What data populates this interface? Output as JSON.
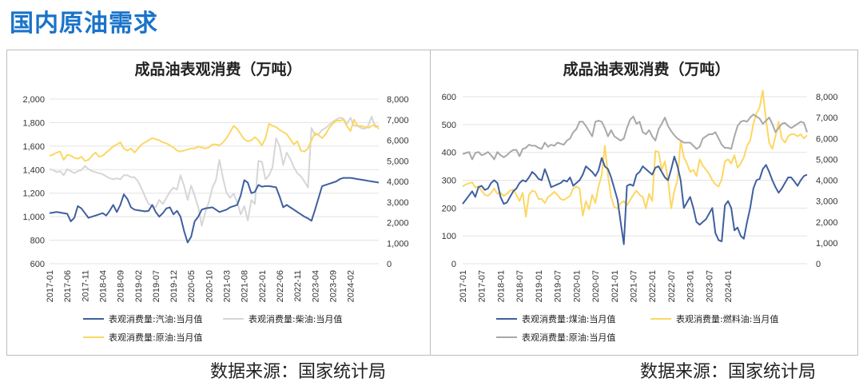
{
  "page": {
    "title": "国内原油需求",
    "source_left": "数据来源：国家统计局",
    "source_right": "数据来源：国家统计局"
  },
  "colors": {
    "title": "#1a73c9",
    "gasoline": "#3f5f9f",
    "diesel": "#d6d6d6",
    "crude_left": "#fcd762",
    "coal": "#3f5f9f",
    "fuel_oil": "#fcd762",
    "crude_right": "#a8a8a8"
  },
  "chart_data": [
    {
      "type": "line",
      "title": "成品油表观消费（万吨）",
      "x_start": "2017-01",
      "x_ticks": [
        "2017-01",
        "2017-06",
        "2017-11",
        "2018-04",
        "2018-09",
        "2019-02",
        "2019-07",
        "2019-12",
        "2020-05",
        "2020-10",
        "2021-03",
        "2021-08",
        "2022-01",
        "2022-06",
        "2022-11",
        "2023-04",
        "2023-09",
        "2024-02"
      ],
      "y_left": {
        "ticks": [
          "600",
          "800",
          "1,000",
          "1,200",
          "1,400",
          "1,600",
          "1,800",
          "2,000"
        ],
        "lim": [
          600,
          2000
        ]
      },
      "y_right": {
        "ticks": [
          "0",
          "1,000",
          "2,000",
          "3,000",
          "4,000",
          "5,000",
          "6,000",
          "7,000",
          "8,000"
        ],
        "lim": [
          0,
          8000
        ]
      },
      "legend_position": "bottom",
      "series": [
        {
          "name": "表观消费量:汽油:当月值",
          "axis": "left",
          "color_key": "gasoline",
          "values": [
            1030,
            1035,
            1040,
            1035,
            1030,
            1025,
            960,
            990,
            1090,
            1070,
            1030,
            990,
            1000,
            1010,
            1020,
            1030,
            1010,
            1050,
            1100,
            1040,
            1100,
            1190,
            1150,
            1080,
            1060,
            1055,
            1050,
            1045,
            1050,
            1100,
            1040,
            1000,
            1030,
            1070,
            1080,
            1020,
            1050,
            1000,
            880,
            780,
            830,
            960,
            1000,
            1060,
            1070,
            1075,
            1080,
            1060,
            1040,
            1050,
            1060,
            1080,
            1090,
            1100,
            1180,
            1310,
            1290,
            1200,
            1210,
            1270,
            1255,
            1260,
            1260,
            1255,
            1250,
            1170,
            1080,
            1100,
            1080,
            1060,
            1040,
            1020,
            1000,
            985,
            965,
            1060,
            1160,
            1260,
            1270,
            1280,
            1290,
            1300,
            1320,
            1330,
            1330,
            1330,
            1325,
            1320,
            1315,
            1310,
            1305,
            1300,
            1295,
            1290
          ]
        },
        {
          "name": "表观消费量:柴油:当月值",
          "axis": "right",
          "color_key": "diesel",
          "values": [
            4600,
            4550,
            4450,
            4500,
            4300,
            4600,
            4500,
            4400,
            4500,
            4550,
            4750,
            4600,
            4500,
            4450,
            4400,
            4350,
            4250,
            4150,
            4100,
            4150,
            4100,
            4300,
            4300,
            4200,
            4200,
            4000,
            3650,
            3250,
            2900,
            2800,
            2750,
            3100,
            2900,
            3200,
            3500,
            3700,
            3600,
            4300,
            3800,
            3100,
            3800,
            3300,
            2750,
            1850,
            2500,
            3000,
            3700,
            4050,
            5050,
            4150,
            3450,
            3200,
            3400,
            3000,
            2400,
            2800,
            2100,
            3100,
            2900,
            5000,
            4950,
            4100,
            4300,
            4700,
            6100,
            5700,
            4800,
            5400,
            5100,
            4700,
            4400,
            4250,
            4000,
            3700,
            6600,
            6250,
            6300,
            6500,
            6600,
            6750,
            6900,
            7000,
            7100,
            7050,
            6800,
            7100,
            6700,
            6700,
            6600,
            6550,
            6700,
            7150,
            6650,
            6700
          ]
        },
        {
          "name": "表观消费量:原油:当月值",
          "axis": "right",
          "color_key": "crude_left",
          "values": [
            5250,
            5300,
            5400,
            5450,
            5050,
            5300,
            5250,
            5150,
            5100,
            5200,
            5000,
            5050,
            5250,
            5400,
            5200,
            5250,
            5400,
            5550,
            5700,
            5800,
            5900,
            5600,
            5500,
            5600,
            5400,
            5600,
            5800,
            5900,
            6000,
            6100,
            6050,
            6000,
            5900,
            5850,
            5750,
            5650,
            5500,
            5450,
            5500,
            5550,
            5600,
            5600,
            5700,
            5650,
            5600,
            5650,
            5800,
            5800,
            5750,
            5900,
            6100,
            6400,
            6700,
            6550,
            6300,
            6050,
            5950,
            6000,
            6150,
            6000,
            5750,
            6100,
            6800,
            6700,
            6650,
            6500,
            6400,
            6300,
            6050,
            5800,
            5950,
            5500,
            5450,
            5600,
            6000,
            6350,
            6250,
            6100,
            6300,
            6600,
            6800,
            6950,
            6950,
            7000,
            6700,
            6450,
            7000,
            6700,
            6700,
            6650,
            6600,
            6700,
            6750,
            6550
          ]
        }
      ]
    },
    {
      "type": "line",
      "title": "成品油表观消费（万吨）",
      "x_start": "2017-01",
      "x_ticks": [
        "2017-01",
        "2017-07",
        "2018-01",
        "2018-07",
        "2019-01",
        "2019-07",
        "2020-01",
        "2020-07",
        "2021-01",
        "2021-07",
        "2022-01",
        "2022-07",
        "2023-01",
        "2023-07",
        "2024-01"
      ],
      "y_left": {
        "ticks": [
          "0",
          "100",
          "200",
          "300",
          "400",
          "500",
          "600"
        ],
        "lim": [
          0,
          600
        ]
      },
      "y_right": {
        "ticks": [
          "0",
          "1,000",
          "2,000",
          "3,000",
          "4,000",
          "5,000",
          "6,000",
          "7,000",
          "8,000"
        ],
        "lim": [
          0,
          8000
        ]
      },
      "legend_position": "bottom",
      "series": [
        {
          "name": "表观消费量:煤油:当月值",
          "axis": "left",
          "color_key": "coal",
          "values": [
            215,
            230,
            245,
            260,
            240,
            275,
            280,
            265,
            270,
            290,
            300,
            290,
            240,
            215,
            220,
            240,
            260,
            270,
            290,
            300,
            295,
            310,
            330,
            320,
            305,
            300,
            340,
            310,
            275,
            280,
            285,
            290,
            300,
            295,
            310,
            280,
            290,
            300,
            320,
            350,
            340,
            330,
            315,
            335,
            380,
            350,
            340,
            310,
            270,
            230,
            150,
            70,
            280,
            285,
            280,
            320,
            330,
            350,
            340,
            330,
            320,
            345,
            350,
            330,
            310,
            300,
            340,
            385,
            350,
            300,
            200,
            220,
            240,
            200,
            150,
            140,
            150,
            160,
            180,
            200,
            110,
            85,
            80,
            210,
            225,
            200,
            120,
            130,
            100,
            90,
            150,
            200,
            270,
            300,
            305,
            340,
            355,
            330,
            300,
            275,
            255,
            270,
            290,
            310,
            310,
            295,
            280,
            300,
            315,
            320
          ]
        },
        {
          "name": "表观消费量:燃料油:当月值",
          "axis": "right",
          "color_key": "fuel_oil",
          "values": [
            3700,
            3800,
            3850,
            3900,
            3650,
            3700,
            3500,
            3300,
            3250,
            3400,
            3600,
            3350,
            3400,
            3250,
            3350,
            3500,
            3550,
            3300,
            3000,
            3400,
            2250,
            3300,
            3500,
            3450,
            3100,
            3100,
            2900,
            3200,
            3300,
            3450,
            3300,
            3100,
            3050,
            3150,
            3250,
            3600,
            3700,
            3600,
            2300,
            3000,
            2600,
            3300,
            2900,
            3700,
            4250,
            5650,
            4200,
            3200,
            2700,
            2650,
            2900,
            3000,
            2800,
            3050,
            3300,
            3500,
            3300,
            3200,
            2650,
            3350,
            3000,
            5400,
            5350,
            4500,
            4900,
            4000,
            2650,
            3500,
            4000,
            5900,
            5100,
            4800,
            4400,
            4500,
            4200,
            5000,
            4700,
            4500,
            4300,
            4000,
            3800,
            3700,
            4050,
            4900,
            5000,
            4800,
            5200,
            4600,
            4800,
            5100,
            5650,
            5900,
            6700,
            7200,
            7500,
            8300,
            6900,
            5800,
            5500,
            6100,
            6800,
            6000,
            5800,
            6100,
            6200,
            6200,
            6100,
            6200,
            6000,
            6150
          ]
        },
        {
          "name": "表观消费量:原油:当月值",
          "axis": "right",
          "color_key": "crude_right",
          "values": [
            5250,
            5300,
            5350,
            5000,
            5300,
            5350,
            5200,
            5250,
            5350,
            5200,
            5000,
            5350,
            5200,
            5100,
            5200,
            5350,
            5450,
            5450,
            5150,
            5500,
            5550,
            5700,
            5650,
            5650,
            5550,
            5500,
            5800,
            5600,
            5700,
            5650,
            5800,
            5750,
            5700,
            5900,
            6000,
            6300,
            6450,
            6800,
            6800,
            6600,
            6350,
            6100,
            6800,
            6850,
            6800,
            6500,
            6100,
            6400,
            6100,
            6000,
            5900,
            6000,
            6500,
            6900,
            7050,
            6700,
            6800,
            6300,
            6200,
            6400,
            6100,
            5900,
            6450,
            6700,
            7000,
            6600,
            6350,
            6150,
            6000,
            5900,
            5800,
            5800,
            5800,
            5650,
            5500,
            5600,
            6000,
            6100,
            6200,
            6200,
            6300,
            6000,
            5700,
            5550,
            5550,
            5500,
            6100,
            6600,
            6800,
            6850,
            6800,
            7000,
            7150,
            7050,
            6950,
            6700,
            6850,
            7000,
            6700,
            6300,
            6500,
            6700,
            6750,
            6600,
            6500,
            6600,
            6700,
            6800,
            6750,
            6300
          ]
        }
      ]
    }
  ]
}
